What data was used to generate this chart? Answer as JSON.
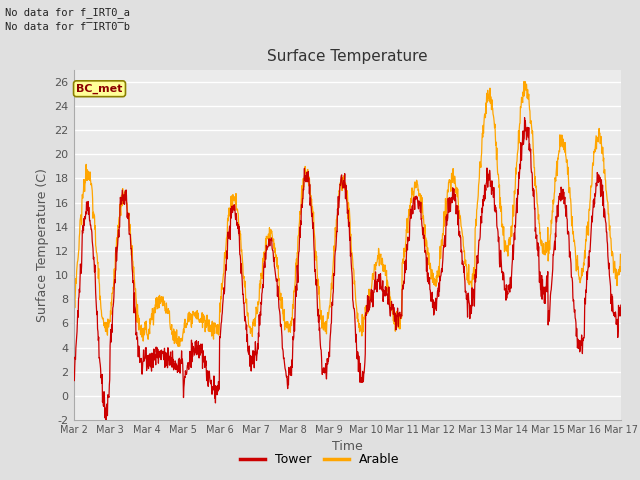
{
  "title": "Surface Temperature",
  "xlabel": "Time",
  "ylabel": "Surface Temperature (C)",
  "ylim": [
    -2,
    27
  ],
  "yticks": [
    -2,
    0,
    2,
    4,
    6,
    8,
    10,
    12,
    14,
    16,
    18,
    20,
    22,
    24,
    26
  ],
  "xtick_labels": [
    "Mar 2",
    "Mar 3",
    "Mar 4",
    "Mar 5",
    "Mar 6",
    "Mar 7",
    "Mar 8",
    "Mar 9",
    "Mar 10",
    "Mar 11",
    "Mar 12",
    "Mar 13",
    "Mar 14",
    "Mar 15",
    "Mar 16",
    "Mar 17"
  ],
  "tower_color": "#CC0000",
  "arable_color": "#FFA500",
  "fig_facecolor": "#E0E0E0",
  "plot_facecolor": "#EBEBEB",
  "no_data_text_a": "No data for f_IRT0_a",
  "no_data_text_b": "No data for f̅IRT0̅b",
  "bc_met_label": "BC_met",
  "legend_tower": "Tower",
  "legend_arable": "Arable",
  "n_days": 15,
  "pts_per_day": 96,
  "tower_daily": {
    "mins": [
      -1.0,
      2.5,
      2.5,
      0.5,
      2.8,
      1.5,
      2.0,
      1.5,
      6.5,
      7.5,
      7.5,
      8.5,
      8.5,
      4.0,
      6.0
    ],
    "maxs": [
      15.5,
      16.5,
      3.5,
      4.0,
      15.5,
      13.0,
      18.0,
      18.0,
      9.5,
      16.5,
      16.5,
      18.0,
      22.0,
      17.0,
      18.0
    ],
    "peak_pos": [
      0.38,
      0.38,
      0.38,
      0.38,
      0.38,
      0.38,
      0.38,
      0.38,
      0.38,
      0.38,
      0.38,
      0.38,
      0.38,
      0.38,
      0.38
    ]
  },
  "arable_daily": {
    "mins": [
      5.5,
      5.0,
      4.5,
      5.5,
      5.5,
      5.5,
      5.5,
      5.5,
      6.0,
      9.5,
      9.5,
      12.0,
      12.0,
      10.0,
      10.0
    ],
    "maxs": [
      18.5,
      16.5,
      8.0,
      6.5,
      16.5,
      13.5,
      18.5,
      18.0,
      11.5,
      17.5,
      18.0,
      25.0,
      25.5,
      21.0,
      21.5
    ],
    "peak_pos": [
      0.38,
      0.38,
      0.38,
      0.38,
      0.38,
      0.38,
      0.38,
      0.38,
      0.38,
      0.38,
      0.38,
      0.38,
      0.38,
      0.38,
      0.38
    ]
  }
}
